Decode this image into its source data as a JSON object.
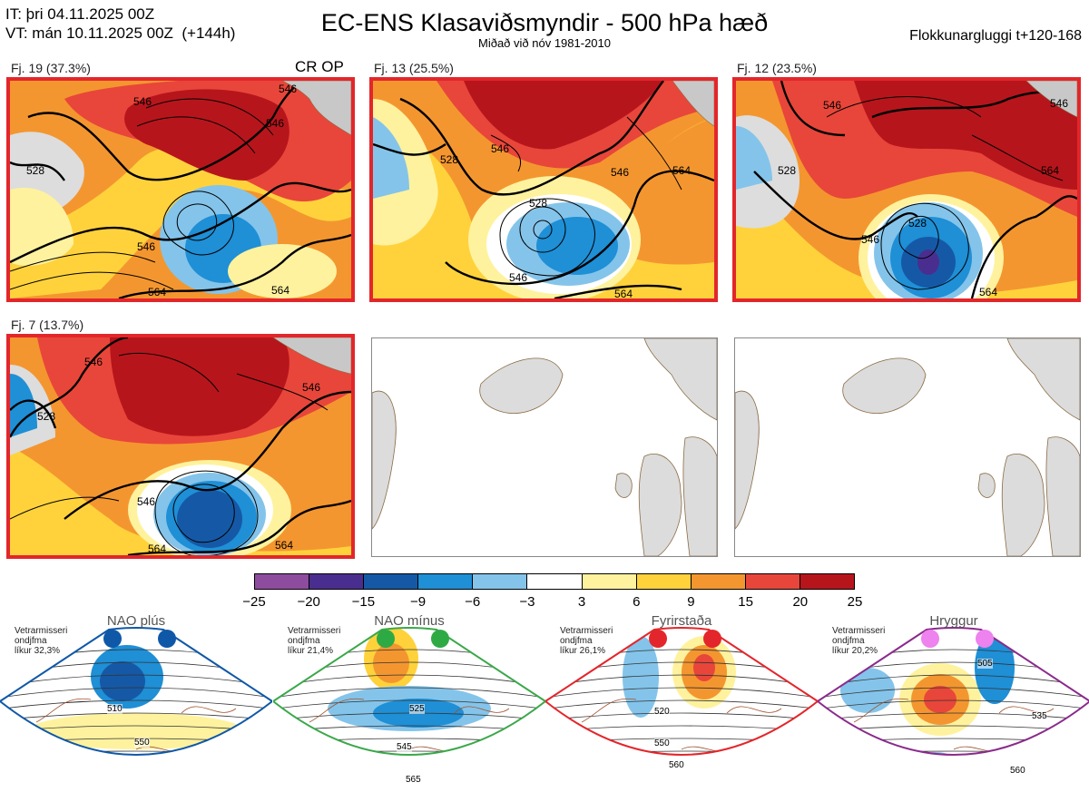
{
  "header": {
    "it_line": "IT: þri 04.11.2025 00Z",
    "vt_line": "VT: mán 10.11.2025 00Z  (+144h)",
    "title": "EC-ENS Klasaviðsmyndir - 500 hPa hæð",
    "subtitle": "Miðað við nóv 1981-2010",
    "window_label": "Flokkunargluggi t+120-168"
  },
  "panels": [
    {
      "label": "Fj. 19 (37.3%)",
      "tag": "CR OP",
      "contours": [
        "546",
        "546",
        "528",
        "546",
        "564",
        "564",
        "546"
      ]
    },
    {
      "label": "Fj. 13 (25.5%)",
      "contours": [
        "546",
        "528",
        "528",
        "564",
        "546",
        "564",
        "546"
      ]
    },
    {
      "label": "Fj. 12 (23.5%)",
      "contours": [
        "546",
        "528",
        "546",
        "528",
        "564",
        "564",
        "546"
      ]
    },
    {
      "label": "Fj. 7 (13.7%)",
      "contours": [
        "546",
        "528",
        "546",
        "546",
        "564",
        "564"
      ]
    }
  ],
  "colorbar": {
    "ticks": [
      "−25",
      "−20",
      "−15",
      "−9",
      "−6",
      "−3",
      "3",
      "6",
      "9",
      "15",
      "20",
      "25"
    ],
    "colors": [
      "#8e4c9e",
      "#4a2e8f",
      "#1559a6",
      "#1f8fd6",
      "#84c4ea",
      "#ffffff",
      "#fff29e",
      "#ffd23c",
      "#f4962f",
      "#e8463a",
      "#b7151c"
    ]
  },
  "regimes": [
    {
      "name": "NAO plús",
      "info": [
        "Vetrarmisseri",
        "ondjfma",
        "líkur 32,3%"
      ],
      "color": "#0f58a8",
      "dot_color": "#0f58a8",
      "contours": [
        "510",
        "550"
      ]
    },
    {
      "name": "NAO mínus",
      "info": [
        "Vetrarmisseri",
        "ondjfma",
        "líkur 21,4%"
      ],
      "color": "#3aa84a",
      "dot_color": "#2eaa45",
      "contours": [
        "525",
        "545",
        "565"
      ]
    },
    {
      "name": "Fyrirstaða",
      "info": [
        "Vetrarmisseri",
        "ondjfma",
        "líkur 26,1%"
      ],
      "color": "#e3262b",
      "dot_color": "#e3262b",
      "contours": [
        "520",
        "550",
        "560"
      ]
    },
    {
      "name": "Hryggur",
      "info": [
        "Vetrarmisseri",
        "ondjfma",
        "líkur 20,2%"
      ],
      "color": "#8a2b8c",
      "dot_color": "#ee82ee",
      "contours": [
        "505",
        "535",
        "560"
      ]
    }
  ]
}
